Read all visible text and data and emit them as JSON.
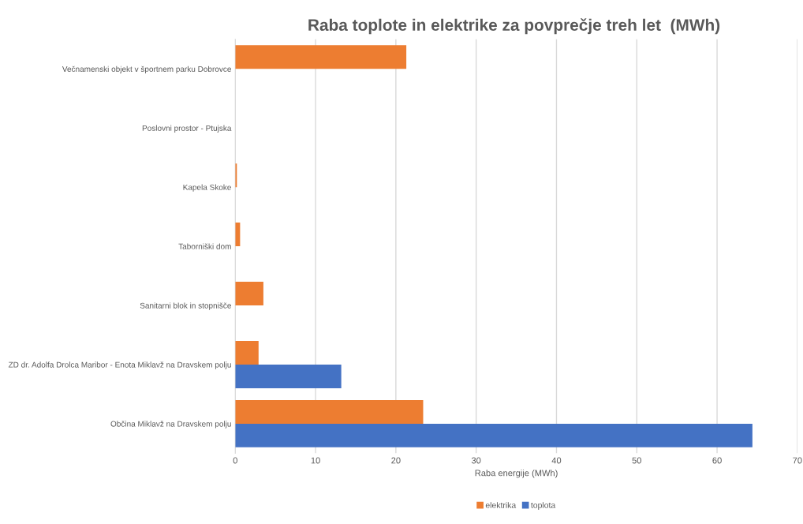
{
  "chart_data": {
    "type": "bar",
    "orientation": "horizontal",
    "title": "Raba toplote in elektrike za povprečje treh let  (MWh)",
    "xlabel": "Raba energije (MWh)",
    "categories": [
      "Večnamenski objekt v športnem parku Dobrovce",
      "Poslovni prostor - Ptujska",
      "Kapela Skoke",
      "Taborniški dom",
      "Sanitarni blok in stopnišče",
      "ZD dr. Adolfa Drolca Maribor - Enota Miklavž na Dravskem polju",
      "Občina Miklavž na Dravskem polju"
    ],
    "series": [
      {
        "name": "elektrika",
        "color": "#ed7d31",
        "values": [
          21.3,
          0,
          0.2,
          0.6,
          3.5,
          2.9,
          23.4
        ]
      },
      {
        "name": "toplota",
        "color": "#4472c4",
        "values": [
          0,
          0,
          0,
          0,
          0,
          13.2,
          64.4
        ]
      }
    ],
    "xlim": [
      0,
      70
    ],
    "xticks": [
      0,
      10,
      20,
      30,
      40,
      50,
      60,
      70
    ],
    "grid": "x",
    "legend": "bottom"
  }
}
